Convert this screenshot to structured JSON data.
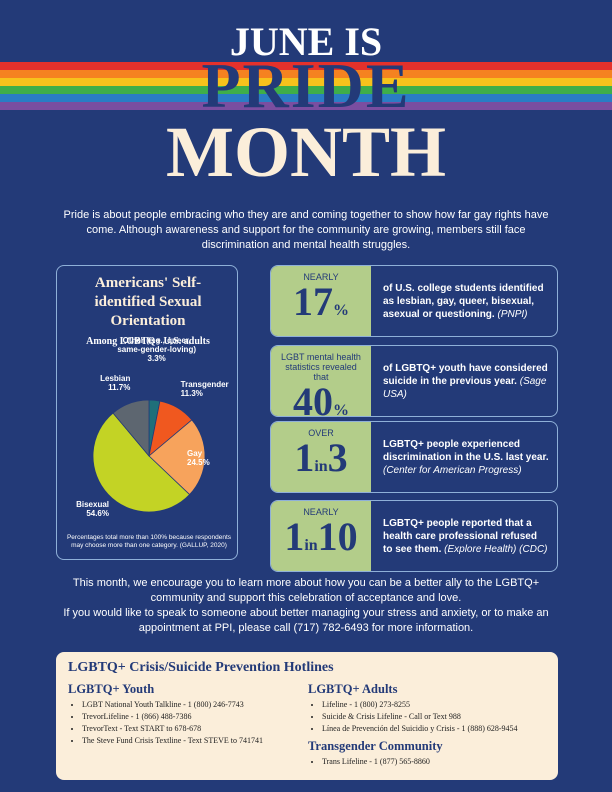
{
  "header": {
    "line1": "JUNE IS",
    "line2": "PRIDE",
    "line3": "MONTH"
  },
  "intro": "Pride is about people embracing who they are and coming together to show how far gay rights have come. Although awareness and support for the community are growing, members still face discrimination and mental health struggles.",
  "chart_data": {
    "type": "pie",
    "title": "Americans' Self-identified Sexual Orientation",
    "subtitle": "Among LGBTQ+ U.S. adults",
    "categories": [
      "Other (e.g., queer, same-gender-loving)",
      "Transgender",
      "Gay",
      "Bisexual",
      "Lesbian"
    ],
    "values": [
      3.3,
      11.3,
      24.5,
      54.6,
      11.7
    ],
    "value_labels": [
      "3.3%",
      "11.3%",
      "24.5%",
      "54.6%",
      "11.7%"
    ],
    "colors": [
      "#1f6f7a",
      "#f0581f",
      "#f7a35c",
      "#c3d325",
      "#5d6670"
    ],
    "note": "Percentages total more than 100% because respondents may choose more than one category. (GALLUP, 2020)"
  },
  "stats": [
    {
      "top": "NEARLY",
      "number": "17",
      "unit": "%",
      "text": "of U.S. college students identified as lesbian, gay, queer, bisexual, asexual or questioning.",
      "source": "(PNPI)"
    },
    {
      "top": "LGBT mental health statistics revealed that",
      "number": "40",
      "unit": "%",
      "text": "of LGBTQ+ youth have considered suicide in the previous year.",
      "source": "(Sage USA)"
    },
    {
      "top": "OVER",
      "number": "1",
      "unit": "in",
      "number2": "3",
      "text": "LGBTQ+ people experienced discrimination in the U.S. last year.",
      "source": "(Center for American Progress)"
    },
    {
      "top": "NEARLY",
      "number": "1",
      "unit": "in",
      "number2": "10",
      "text": "LGBTQ+ people reported that a health care professional refused to see them.",
      "source": "(Explore Health) (CDC)"
    }
  ],
  "outro": [
    "This month, we encourage you to learn more about how you can be a better ally to the LGBTQ+ community and support this celebration of acceptance and love.",
    "If you would like to speak to someone about better managing your stress and anxiety, or to make an appointment at PPI, please call (717) 782-6493 for more information."
  ],
  "hotlines": {
    "title": "LGBTQ+ Crisis/Suicide Prevention Hotlines",
    "youth": {
      "heading": "LGBTQ+ Youth",
      "items": [
        "LGBT National Youth Talkline - 1 (800) 246-7743",
        "TrevorLifeline - 1 (866) 488-7386",
        "TrevorText - Text START to 678-678",
        "The Steve Fund Crisis Textline - Text STEVE to 741741"
      ]
    },
    "adults": {
      "heading": "LGBTQ+ Adults",
      "items": [
        "Lifeline - 1 (800) 273-8255",
        "Suicide & Crisis Lifeline - Call or Text 988",
        "Línea de Prevención del Suicidio y Crisis - 1 (888) 628-9454"
      ]
    },
    "transgender": {
      "heading": "Transgender Community",
      "items": [
        "Trans Lifeline - 1 (877) 565-8860"
      ]
    }
  }
}
